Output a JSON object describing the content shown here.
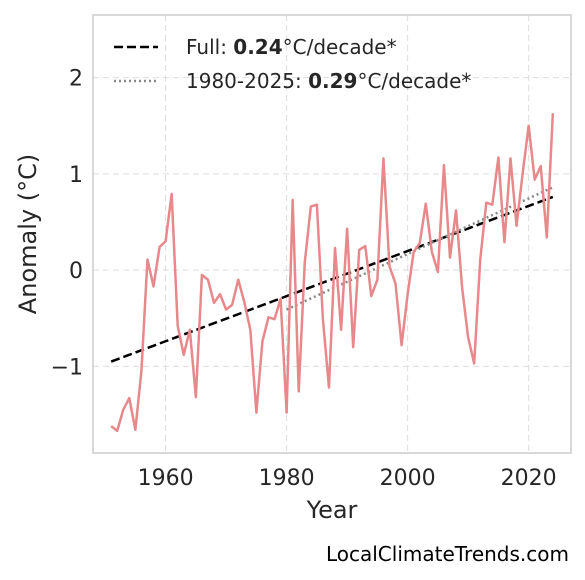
{
  "chart_data": {
    "type": "line",
    "xlabel": "Year",
    "ylabel": "Anomaly (°C)",
    "xlim": [
      1948,
      2027
    ],
    "ylim": [
      -1.9,
      2.65
    ],
    "xticks": [
      1960,
      1980,
      2000,
      2020
    ],
    "yticks": [
      2,
      1,
      0,
      -1
    ],
    "ytick_labels": [
      "2",
      "1",
      "0",
      "−1"
    ],
    "grid": true,
    "legend_placement": "top-left",
    "colors": {
      "series": "#e8888b",
      "trend_full": "#000000",
      "trend_recent": "#888888",
      "grid": "#dddddd",
      "frame": "#cccccc"
    },
    "series": [
      {
        "x": [
          1951,
          1952,
          1953,
          1954,
          1955,
          1956,
          1957,
          1958,
          1959,
          1960,
          1961,
          1962,
          1963,
          1964,
          1965,
          1966,
          1967,
          1968,
          1969,
          1970,
          1971,
          1972,
          1973,
          1974,
          1975,
          1976,
          1977,
          1978,
          1979,
          1980,
          1981,
          1982,
          1983,
          1984,
          1985,
          1986,
          1987,
          1988,
          1989,
          1990,
          1991,
          1992,
          1993,
          1994,
          1995,
          1996,
          1997,
          1998,
          1999,
          2000,
          2001,
          2002,
          2003,
          2004,
          2005,
          2006,
          2007,
          2008,
          2009,
          2010,
          2011,
          2012,
          2013,
          2014,
          2015,
          2016,
          2017,
          2018,
          2019,
          2020,
          2021,
          2022,
          2023,
          2024
        ],
        "values": [
          -1.62,
          -1.67,
          -1.45,
          -1.33,
          -1.66,
          -1.05,
          0.11,
          -0.17,
          0.24,
          0.3,
          0.79,
          -0.58,
          -0.88,
          -0.62,
          -1.32,
          -0.05,
          -0.1,
          -0.34,
          -0.25,
          -0.41,
          -0.36,
          -0.1,
          -0.33,
          -0.62,
          -1.48,
          -0.74,
          -0.49,
          -0.51,
          -0.3,
          -1.48,
          0.73,
          -1.26,
          0.08,
          0.66,
          0.68,
          -0.51,
          -1.22,
          0.23,
          -0.62,
          0.43,
          -0.8,
          0.21,
          0.25,
          -0.27,
          -0.1,
          1.16,
          0.04,
          -0.14,
          -0.78,
          -0.25,
          0.19,
          0.28,
          0.69,
          0.19,
          -0.02,
          1.09,
          0.13,
          0.62,
          -0.18,
          -0.7,
          -0.97,
          0.11,
          0.7,
          0.68,
          1.17,
          0.29,
          1.16,
          0.46,
          1.0,
          1.5,
          0.94,
          1.08,
          0.34,
          1.63
        ]
      }
    ],
    "trend_lines": [
      {
        "label": "Full: ",
        "rate": "0.24",
        "unit": "°C/decade*",
        "style": "dashed",
        "x": [
          1951,
          2024
        ],
        "y": [
          -0.95,
          0.76
        ]
      },
      {
        "label": "1980-2025: ",
        "rate": "0.29",
        "unit": "°C/decade*",
        "style": "dotted",
        "x": [
          1980,
          2024
        ],
        "y": [
          -0.41,
          0.86
        ]
      }
    ]
  },
  "watermark": "LocalClimateTrends.com"
}
